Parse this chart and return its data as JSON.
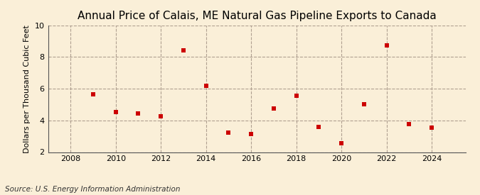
{
  "title": "Annual Price of Calais, ME Natural Gas Pipeline Exports to Canada",
  "ylabel": "Dollars per Thousand Cubic Feet",
  "source": "Source: U.S. Energy Information Administration",
  "background_color": "#faefd8",
  "years": [
    2009,
    2010,
    2011,
    2012,
    2013,
    2014,
    2015,
    2016,
    2017,
    2018,
    2019,
    2020,
    2021,
    2022,
    2023,
    2024
  ],
  "values": [
    5.65,
    4.55,
    4.45,
    4.28,
    8.43,
    6.18,
    3.25,
    3.12,
    4.75,
    5.55,
    3.58,
    2.58,
    5.0,
    8.72,
    3.78,
    3.55
  ],
  "marker_color": "#cc0000",
  "marker": "s",
  "marker_size": 4,
  "ylim": [
    2,
    10
  ],
  "yticks": [
    2,
    4,
    6,
    8,
    10
  ],
  "xlim": [
    2007.0,
    2025.5
  ],
  "xticks": [
    2008,
    2010,
    2012,
    2014,
    2016,
    2018,
    2020,
    2022,
    2024
  ],
  "grid_color": "#b0a090",
  "title_fontsize": 11,
  "ylabel_fontsize": 8,
  "tick_fontsize": 8,
  "source_fontsize": 7.5
}
